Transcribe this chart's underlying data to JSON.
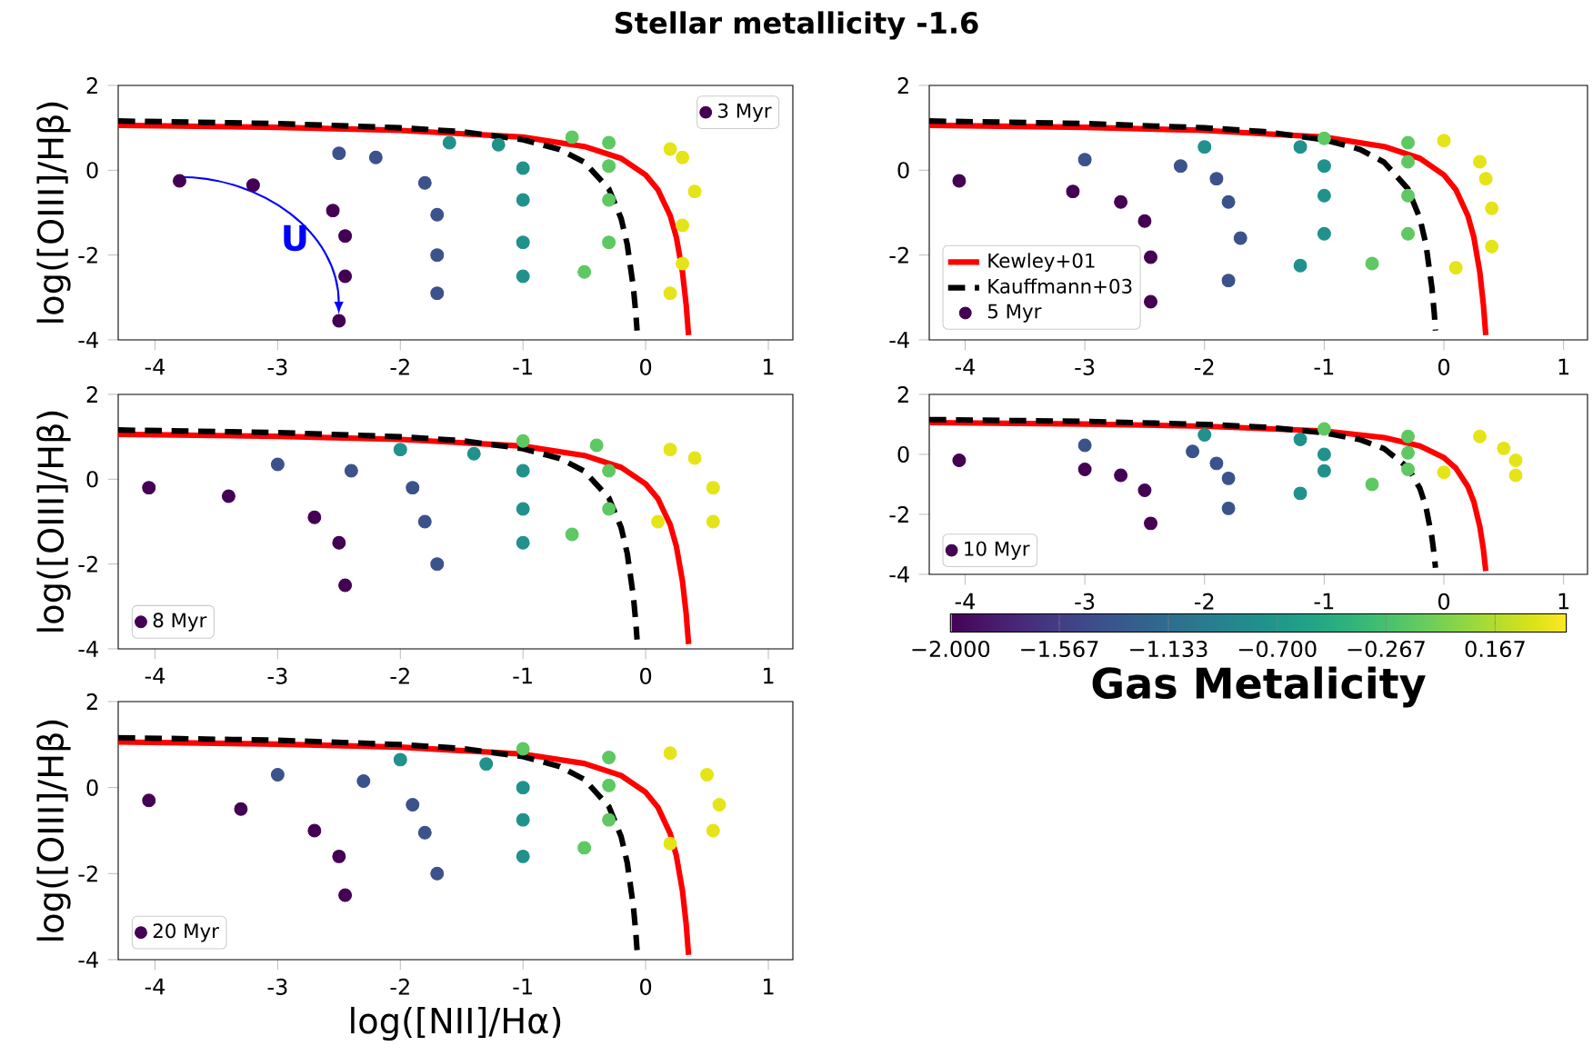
{
  "chart_data": [
    {
      "type": "scatter",
      "title": "Stellar metallicity -1.6",
      "ylabel": "log([OIII]/Hβ)",
      "annotations": [
        "U"
      ],
      "xlim": [
        -4.3,
        1.2
      ],
      "ylim": [
        -4,
        2
      ],
      "xticks": [
        -4,
        -3,
        -2,
        -1,
        0,
        1
      ],
      "yticks": [
        -4,
        -2,
        0,
        2
      ],
      "legend": "top right",
      "series": [
        {
          "type": "line",
          "color": "#ff0000",
          "line_style": "solid",
          "x": [
            -4.3,
            -3,
            -2,
            -1,
            -0.5,
            -0.2,
            0,
            0.1,
            0.2,
            0.25,
            0.3,
            0.33,
            0.35
          ],
          "values": [
            1.06,
            1.01,
            0.94,
            0.78,
            0.56,
            0.28,
            -0.11,
            -0.46,
            -1.07,
            -1.58,
            -2.4,
            -3.17,
            -3.89
          ]
        },
        {
          "type": "line",
          "color": "#000000",
          "line_style": "dashed",
          "x": [
            -4.3,
            -3,
            -2,
            -1.5,
            -1,
            -0.7,
            -0.5,
            -0.3,
            -0.2,
            -0.15,
            -0.1,
            -0.08,
            -0.07
          ],
          "values": [
            1.16,
            1.1,
            1.0,
            0.91,
            0.72,
            0.49,
            0.19,
            -0.44,
            -1.14,
            -1.75,
            -2.77,
            -3.39,
            -3.78
          ]
        },
        {
          "name": "3 Myr",
          "marker": "circle",
          "x": [
            -3.8,
            -2.5,
            -1.6,
            -0.6,
            0.2,
            -3.2,
            -2.2,
            -1.2,
            -0.3,
            0.3,
            -2.55,
            -1.8,
            -1.0,
            -0.3,
            0.4,
            -2.45,
            -1.7,
            -1.0,
            -0.3,
            0.3,
            -2.45,
            -1.7,
            -1.0,
            -0.3,
            0.3,
            -2.5,
            -1.7,
            -1.0,
            -0.5,
            0.2
          ],
          "values": [
            -0.25,
            0.4,
            0.65,
            0.78,
            0.5,
            -0.35,
            0.3,
            0.6,
            0.65,
            0.3,
            -0.95,
            -0.3,
            0.05,
            0.1,
            -0.5,
            -1.55,
            -1.05,
            -0.7,
            -0.7,
            -1.3,
            -2.5,
            -2.0,
            -1.7,
            -1.7,
            -2.2,
            -3.55,
            -2.9,
            -2.5,
            -2.4,
            -2.9
          ],
          "colors": [
            "#440154",
            "#3b528b",
            "#21918c",
            "#5ec962",
            "#e5e419",
            "#440154",
            "#3b528b",
            "#21918c",
            "#5ec962",
            "#e5e419",
            "#440154",
            "#3b528b",
            "#21918c",
            "#5ec962",
            "#e5e419",
            "#440154",
            "#3b528b",
            "#21918c",
            "#5ec962",
            "#e5e419",
            "#440154",
            "#3b528b",
            "#21918c",
            "#5ec962",
            "#e5e419",
            "#440154",
            "#3b528b",
            "#21918c",
            "#5ec962",
            "#e5e419"
          ]
        }
      ]
    },
    {
      "type": "scatter",
      "xlim": [
        -4.3,
        1.2
      ],
      "ylim": [
        -4,
        2
      ],
      "xticks": [
        -4,
        -3,
        -2,
        -1,
        0,
        1
      ],
      "yticks": [
        -4,
        -2,
        0,
        2
      ],
      "legend": "bottom left",
      "series": [
        {
          "type": "line",
          "name": "Kewley+01",
          "color": "#ff0000",
          "line_style": "solid",
          "x": [
            -4.3,
            -3,
            -2,
            -1,
            -0.5,
            -0.2,
            0,
            0.1,
            0.2,
            0.25,
            0.3,
            0.33,
            0.35
          ],
          "values": [
            1.06,
            1.01,
            0.94,
            0.78,
            0.56,
            0.28,
            -0.11,
            -0.46,
            -1.07,
            -1.58,
            -2.4,
            -3.17,
            -3.89
          ]
        },
        {
          "type": "line",
          "name": "Kauffmann+03",
          "color": "#000000",
          "line_style": "dashed",
          "x": [
            -4.3,
            -3,
            -2,
            -1.5,
            -1,
            -0.7,
            -0.5,
            -0.3,
            -0.2,
            -0.15,
            -0.1,
            -0.08,
            -0.07
          ],
          "values": [
            1.16,
            1.1,
            1.0,
            0.91,
            0.72,
            0.49,
            0.19,
            -0.44,
            -1.14,
            -1.75,
            -2.77,
            -3.39,
            -3.78
          ]
        },
        {
          "name": "5 Myr",
          "marker": "circle",
          "x": [
            -4.05,
            -3.0,
            -2.0,
            -1.0,
            0.0,
            -3.1,
            -2.2,
            -1.2,
            -0.3,
            0.3,
            -2.7,
            -1.9,
            -1.0,
            -0.3,
            0.35,
            -2.5,
            -1.8,
            -1.0,
            -0.3,
            0.4,
            -2.45,
            -1.7,
            -1.0,
            -0.3,
            0.4,
            -2.45,
            -1.8,
            -1.2,
            -0.6,
            0.1
          ],
          "values": [
            -0.25,
            0.25,
            0.55,
            0.75,
            0.7,
            -0.5,
            0.1,
            0.55,
            0.65,
            0.2,
            -0.75,
            -0.2,
            0.1,
            0.2,
            -0.2,
            -1.2,
            -0.75,
            -0.6,
            -0.6,
            -0.9,
            -2.05,
            -1.6,
            -1.5,
            -1.5,
            -1.8,
            -3.1,
            -2.6,
            -2.25,
            -2.2,
            -2.3
          ],
          "colors": [
            "#440154",
            "#3b528b",
            "#21918c",
            "#5ec962",
            "#e5e419",
            "#440154",
            "#3b528b",
            "#21918c",
            "#5ec962",
            "#e5e419",
            "#440154",
            "#3b528b",
            "#21918c",
            "#5ec962",
            "#e5e419",
            "#440154",
            "#3b528b",
            "#21918c",
            "#5ec962",
            "#e5e419",
            "#440154",
            "#3b528b",
            "#21918c",
            "#5ec962",
            "#e5e419",
            "#440154",
            "#3b528b",
            "#21918c",
            "#5ec962",
            "#e5e419"
          ]
        }
      ]
    },
    {
      "type": "scatter",
      "ylabel": "log([OIII]/Hβ)",
      "xlim": [
        -4.3,
        1.2
      ],
      "ylim": [
        -4,
        2
      ],
      "xticks": [
        -4,
        -3,
        -2,
        -1,
        0,
        1
      ],
      "yticks": [
        -4,
        -2,
        0,
        2
      ],
      "legend": "bottom left",
      "series": [
        {
          "type": "line",
          "color": "#ff0000",
          "line_style": "solid",
          "x": [
            -4.3,
            -3,
            -2,
            -1,
            -0.5,
            -0.2,
            0,
            0.1,
            0.2,
            0.25,
            0.3,
            0.33,
            0.35
          ],
          "values": [
            1.06,
            1.01,
            0.94,
            0.78,
            0.56,
            0.28,
            -0.11,
            -0.46,
            -1.07,
            -1.58,
            -2.4,
            -3.17,
            -3.89
          ]
        },
        {
          "type": "line",
          "color": "#000000",
          "line_style": "dashed",
          "x": [
            -4.3,
            -3,
            -2,
            -1.5,
            -1,
            -0.7,
            -0.5,
            -0.3,
            -0.2,
            -0.15,
            -0.1,
            -0.08,
            -0.07
          ],
          "values": [
            1.16,
            1.1,
            1.0,
            0.91,
            0.72,
            0.49,
            0.19,
            -0.44,
            -1.14,
            -1.75,
            -2.77,
            -3.39,
            -3.78
          ]
        },
        {
          "name": "8 Myr",
          "marker": "circle",
          "x": [
            -4.05,
            -3.0,
            -2.0,
            -1.0,
            0.2,
            -3.4,
            -2.4,
            -1.4,
            -0.4,
            0.4,
            -2.7,
            -1.9,
            -1.0,
            -0.3,
            0.55,
            -2.5,
            -1.8,
            -1.0,
            -0.3,
            0.55,
            -2.45,
            -1.7,
            -1.0,
            -0.6,
            0.1
          ],
          "values": [
            -0.2,
            0.35,
            0.7,
            0.9,
            0.7,
            -0.4,
            0.2,
            0.6,
            0.8,
            0.5,
            -0.9,
            -0.2,
            0.2,
            0.2,
            -0.2,
            -1.5,
            -1.0,
            -0.7,
            -0.7,
            -1.0,
            -2.5,
            -2.0,
            -1.5,
            -1.3,
            -1.0
          ],
          "colors": [
            "#440154",
            "#3b528b",
            "#21918c",
            "#5ec962",
            "#e5e419",
            "#440154",
            "#3b528b",
            "#21918c",
            "#5ec962",
            "#e5e419",
            "#440154",
            "#3b528b",
            "#21918c",
            "#5ec962",
            "#e5e419",
            "#440154",
            "#3b528b",
            "#21918c",
            "#5ec962",
            "#e5e419",
            "#440154",
            "#3b528b",
            "#21918c",
            "#5ec962",
            "#e5e419"
          ]
        }
      ]
    },
    {
      "type": "scatter",
      "clabel": "Gas Metalicity",
      "xlim": [
        -4.3,
        1.2
      ],
      "ylim": [
        -4,
        2
      ],
      "xticks": [
        -4,
        -3,
        -2,
        -1,
        0,
        1
      ],
      "yticks": [
        -4,
        -2,
        0,
        2
      ],
      "legend": "bottom left",
      "clim": [
        -2,
        0.45
      ],
      "cticks": [
        {
          "value": -2,
          "label": "−2.000"
        },
        {
          "value": -1.567,
          "label": "−1.567"
        },
        {
          "value": -1.133,
          "label": "−1.133"
        },
        {
          "value": -0.7,
          "label": "−0.700"
        },
        {
          "value": -0.267,
          "label": "−0.267"
        },
        {
          "value": 0.167,
          "label": "0.167"
        }
      ],
      "series": [
        {
          "type": "line",
          "color": "#ff0000",
          "line_style": "solid",
          "x": [
            -4.3,
            -3,
            -2,
            -1,
            -0.5,
            -0.2,
            0,
            0.1,
            0.2,
            0.25,
            0.3,
            0.33,
            0.35
          ],
          "values": [
            1.06,
            1.01,
            0.94,
            0.78,
            0.56,
            0.28,
            -0.11,
            -0.46,
            -1.07,
            -1.58,
            -2.4,
            -3.17,
            -3.89
          ]
        },
        {
          "type": "line",
          "color": "#000000",
          "line_style": "dashed",
          "x": [
            -4.3,
            -3,
            -2,
            -1.5,
            -1,
            -0.7,
            -0.5,
            -0.3,
            -0.2,
            -0.15,
            -0.1,
            -0.08,
            -0.07
          ],
          "values": [
            1.16,
            1.1,
            1.0,
            0.91,
            0.72,
            0.49,
            0.19,
            -0.44,
            -1.14,
            -1.75,
            -2.77,
            -3.39,
            -3.78
          ]
        },
        {
          "name": "10 Myr",
          "marker": "circle",
          "x": [
            -4.05,
            -3.0,
            -2.0,
            -1.0,
            0.3,
            -3.0,
            -2.1,
            -1.2,
            -0.3,
            0.5,
            -2.7,
            -1.9,
            -1.0,
            -0.3,
            0.6,
            -2.5,
            -1.8,
            -1.0,
            -0.3,
            0.6,
            -2.45,
            -1.8,
            -1.2,
            -0.6,
            0.0
          ],
          "values": [
            -0.2,
            0.3,
            0.65,
            0.85,
            0.6,
            -0.5,
            0.1,
            0.5,
            0.6,
            0.2,
            -0.7,
            -0.3,
            0.0,
            0.05,
            -0.2,
            -1.2,
            -0.8,
            -0.55,
            -0.5,
            -0.7,
            -2.3,
            -1.8,
            -1.3,
            -1.0,
            -0.6
          ],
          "colors": [
            "#440154",
            "#3b528b",
            "#21918c",
            "#5ec962",
            "#e5e419",
            "#440154",
            "#3b528b",
            "#21918c",
            "#5ec962",
            "#e5e419",
            "#440154",
            "#3b528b",
            "#21918c",
            "#5ec962",
            "#e5e419",
            "#440154",
            "#3b528b",
            "#21918c",
            "#5ec962",
            "#e5e419",
            "#440154",
            "#3b528b",
            "#21918c",
            "#5ec962",
            "#e5e419"
          ]
        }
      ]
    },
    {
      "type": "scatter",
      "xlabel": "log([NII]/Hα)",
      "ylabel": "log([OIII]/Hβ)",
      "xlim": [
        -4.3,
        1.2
      ],
      "ylim": [
        -4,
        2
      ],
      "xticks": [
        -4,
        -3,
        -2,
        -1,
        0,
        1
      ],
      "yticks": [
        -4,
        -2,
        0,
        2
      ],
      "legend": "bottom left",
      "series": [
        {
          "type": "line",
          "color": "#ff0000",
          "line_style": "solid",
          "x": [
            -4.3,
            -3,
            -2,
            -1,
            -0.5,
            -0.2,
            0,
            0.1,
            0.2,
            0.25,
            0.3,
            0.33,
            0.35
          ],
          "values": [
            1.06,
            1.01,
            0.94,
            0.78,
            0.56,
            0.28,
            -0.11,
            -0.46,
            -1.07,
            -1.58,
            -2.4,
            -3.17,
            -3.89
          ]
        },
        {
          "type": "line",
          "color": "#000000",
          "line_style": "dashed",
          "x": [
            -4.3,
            -3,
            -2,
            -1.5,
            -1,
            -0.7,
            -0.5,
            -0.3,
            -0.2,
            -0.15,
            -0.1,
            -0.08,
            -0.07
          ],
          "values": [
            1.16,
            1.1,
            1.0,
            0.91,
            0.72,
            0.49,
            0.19,
            -0.44,
            -1.14,
            -1.75,
            -2.77,
            -3.39,
            -3.78
          ]
        },
        {
          "name": "20 Myr",
          "marker": "circle",
          "x": [
            -4.05,
            -3.0,
            -2.0,
            -1.0,
            0.2,
            -3.3,
            -2.3,
            -1.3,
            -0.3,
            0.5,
            -2.7,
            -1.9,
            -1.0,
            -0.3,
            0.6,
            -2.5,
            -1.8,
            -1.0,
            -0.3,
            0.55,
            -2.45,
            -1.7,
            -1.0,
            -0.5,
            0.2
          ],
          "values": [
            -0.3,
            0.3,
            0.65,
            0.9,
            0.8,
            -0.5,
            0.15,
            0.55,
            0.7,
            0.3,
            -1.0,
            -0.4,
            0.0,
            0.05,
            -0.4,
            -1.6,
            -1.05,
            -0.75,
            -0.75,
            -1.0,
            -2.5,
            -2.0,
            -1.6,
            -1.4,
            -1.3
          ],
          "colors": [
            "#440154",
            "#3b528b",
            "#21918c",
            "#5ec962",
            "#e5e419",
            "#440154",
            "#3b528b",
            "#21918c",
            "#5ec962",
            "#e5e419",
            "#440154",
            "#3b528b",
            "#21918c",
            "#5ec962",
            "#e5e419",
            "#440154",
            "#3b528b",
            "#21918c",
            "#5ec962",
            "#e5e419",
            "#440154",
            "#3b528b",
            "#21918c",
            "#5ec962",
            "#e5e419"
          ]
        }
      ]
    }
  ]
}
